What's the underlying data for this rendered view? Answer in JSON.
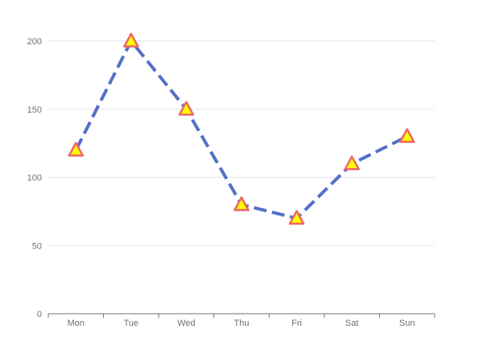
{
  "chart_data": {
    "type": "line",
    "categories": [
      "Mon",
      "Tue",
      "Wed",
      "Thu",
      "Fri",
      "Sat",
      "Sun"
    ],
    "series": [
      {
        "values": [
          120,
          200,
          150,
          80,
          70,
          110,
          130
        ]
      }
    ],
    "y_ticks": [
      "0",
      "50",
      "100",
      "150",
      "200"
    ],
    "ylim": [
      0,
      200
    ],
    "grid": "horizontal",
    "line_style": "dashed",
    "marker": "triangle",
    "colors": {
      "line": "#5470c6",
      "marker_fill": "#ffff00",
      "marker_stroke": "#ee6666",
      "grid": "#e0e6f1",
      "axis": "#6e7079",
      "text": "#6e7079"
    }
  }
}
